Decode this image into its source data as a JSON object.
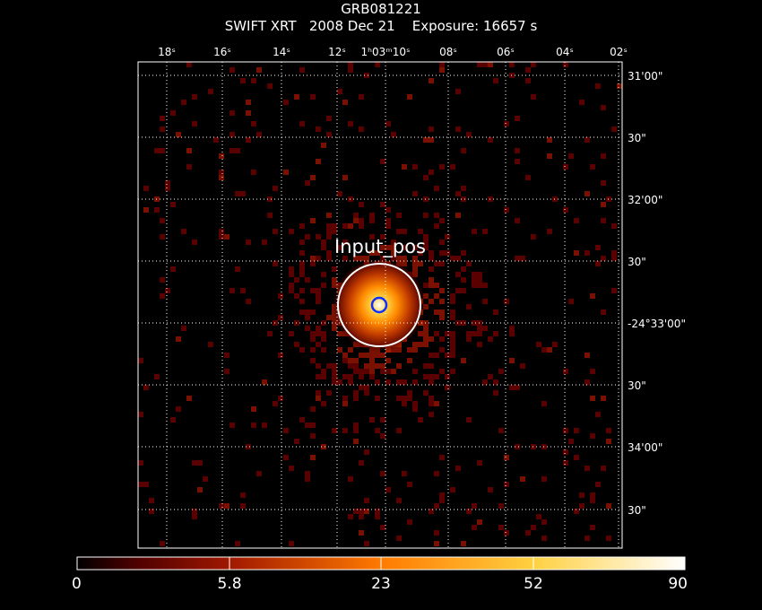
{
  "header": {
    "title": "GRB081221",
    "subtitle": "SWIFT XRT   2008 Dec 21    Exposure: 16657 s"
  },
  "image": {
    "source_label": "Input_pos",
    "ra_ticks": [
      "18ˢ",
      "16ˢ",
      "14ˢ",
      "12ˢ",
      "1ʰ03ᵐ10ˢ",
      "08ˢ",
      "06ˢ",
      "04ˢ",
      "02ˢ"
    ],
    "dec_ticks": [
      "31'00\"",
      "30\"",
      "32'00\"",
      "30\"",
      "-24°33'00\"",
      "30\"",
      "34'00\"",
      "30\""
    ]
  },
  "colorbar": {
    "labels": [
      "0",
      "5.8",
      "23",
      "52",
      "90"
    ],
    "colors": [
      "#500000",
      "#a01800",
      "#ff7a00",
      "#ffd040",
      "#ffffff"
    ]
  },
  "colors": {
    "frame": "#ffffff",
    "grid": "#ffffff",
    "source_circle": "#ffffff",
    "center_circle": "#1030ff",
    "background": "#000000"
  }
}
